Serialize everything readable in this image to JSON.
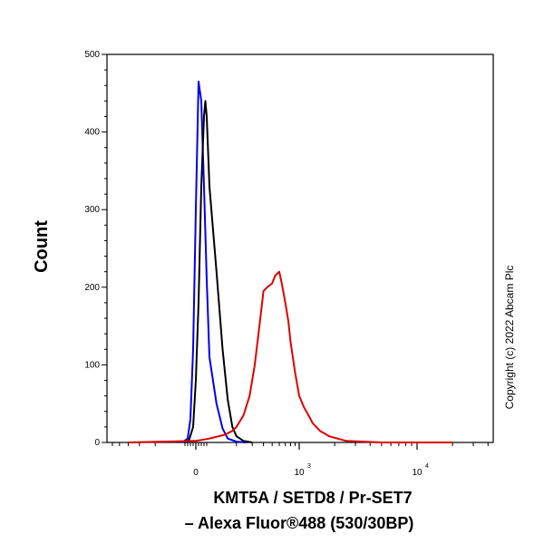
{
  "chart_data": {
    "type": "line",
    "ylabel": "Count",
    "xlabel_lines": [
      "KMT5A / SETD8 / Pr-SET7",
      "– Alexa Fluor®488 (530/30BP)"
    ],
    "copyright": "Copyright (c) 2022 Abcam Plc",
    "ylim": [
      0,
      500
    ],
    "y_ticks": [
      "0",
      "100",
      "200",
      "300",
      "400",
      "500"
    ],
    "x_ticks": [
      {
        "base": "0",
        "exp": ""
      },
      {
        "base": "10",
        "exp": "3"
      },
      {
        "base": "10",
        "exp": "4"
      }
    ],
    "grid": false,
    "series": [
      {
        "color": "#0000ee",
        "x": [
          -100,
          -60,
          -40,
          -20,
          0,
          20,
          40,
          60,
          80,
          100,
          120,
          140,
          160,
          200,
          260
        ],
        "y": [
          0,
          5,
          30,
          120,
          300,
          465,
          440,
          330,
          210,
          110,
          50,
          18,
          5,
          1,
          0
        ]
      },
      {
        "color": "#000000",
        "x": [
          -80,
          -50,
          -20,
          0,
          20,
          40,
          60,
          70,
          80,
          100,
          120,
          140,
          160,
          180,
          200,
          240,
          300
        ],
        "y": [
          0,
          3,
          20,
          80,
          180,
          330,
          420,
          440,
          420,
          330,
          220,
          120,
          55,
          20,
          8,
          2,
          0
        ]
      },
      {
        "color": "#dd0000",
        "x": [
          -400,
          0,
          100,
          150,
          180,
          200,
          240,
          280,
          320,
          360,
          400,
          440,
          500,
          540,
          600,
          640,
          700,
          760,
          800,
          900,
          1000,
          1100,
          1200,
          1300,
          1500,
          1800,
          2500,
          5000,
          20000
        ],
        "y": [
          0,
          2,
          5,
          10,
          15,
          20,
          35,
          60,
          100,
          150,
          195,
          200,
          205,
          215,
          220,
          205,
          180,
          155,
          130,
          90,
          60,
          45,
          35,
          25,
          15,
          8,
          2,
          0,
          0
        ]
      }
    ]
  }
}
